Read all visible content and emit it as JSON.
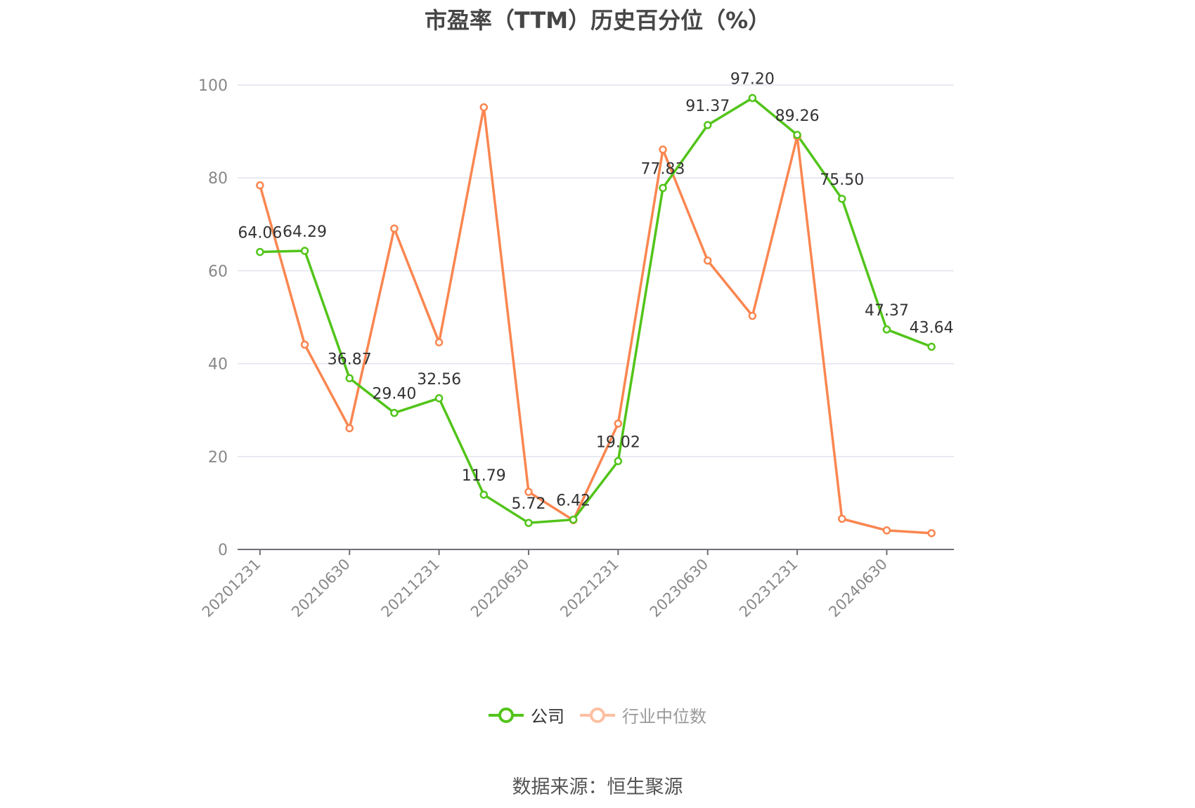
{
  "chart_data": {
    "type": "line",
    "title": "市盈率（TTM）历史百分位（%）",
    "x": [
      "20201231",
      "20210331",
      "20210630",
      "20210930",
      "20211231",
      "20220331",
      "20220630",
      "20220930",
      "20221231",
      "20230331",
      "20230630",
      "20230930",
      "20231231",
      "20240331",
      "20240630",
      "20240930"
    ],
    "x_tick_labels_shown": [
      "20201231",
      "20210630",
      "20211231",
      "20220630",
      "20221231",
      "20230630",
      "20231231",
      "20240630"
    ],
    "ylim": [
      0,
      100
    ],
    "yticks": [
      0,
      20,
      40,
      60,
      80,
      100
    ],
    "grid": true,
    "legend_position": "bottom",
    "series": [
      {
        "name": "公司",
        "color": "#52c41a",
        "data_labels": true,
        "values": [
          64.06,
          64.29,
          36.87,
          29.4,
          32.56,
          11.79,
          5.72,
          6.42,
          19.02,
          77.83,
          91.37,
          97.2,
          89.26,
          75.5,
          47.37,
          43.64
        ]
      },
      {
        "name": "行业中位数",
        "color": "#fa8650",
        "data_labels": false,
        "values": [
          78.4,
          44.1,
          26.1,
          69.1,
          44.6,
          95.2,
          12.4,
          6.3,
          27.1,
          86.1,
          62.2,
          50.3,
          88.9,
          6.6,
          4.1,
          3.5
        ]
      }
    ]
  },
  "source": "数据来源：恒生聚源"
}
